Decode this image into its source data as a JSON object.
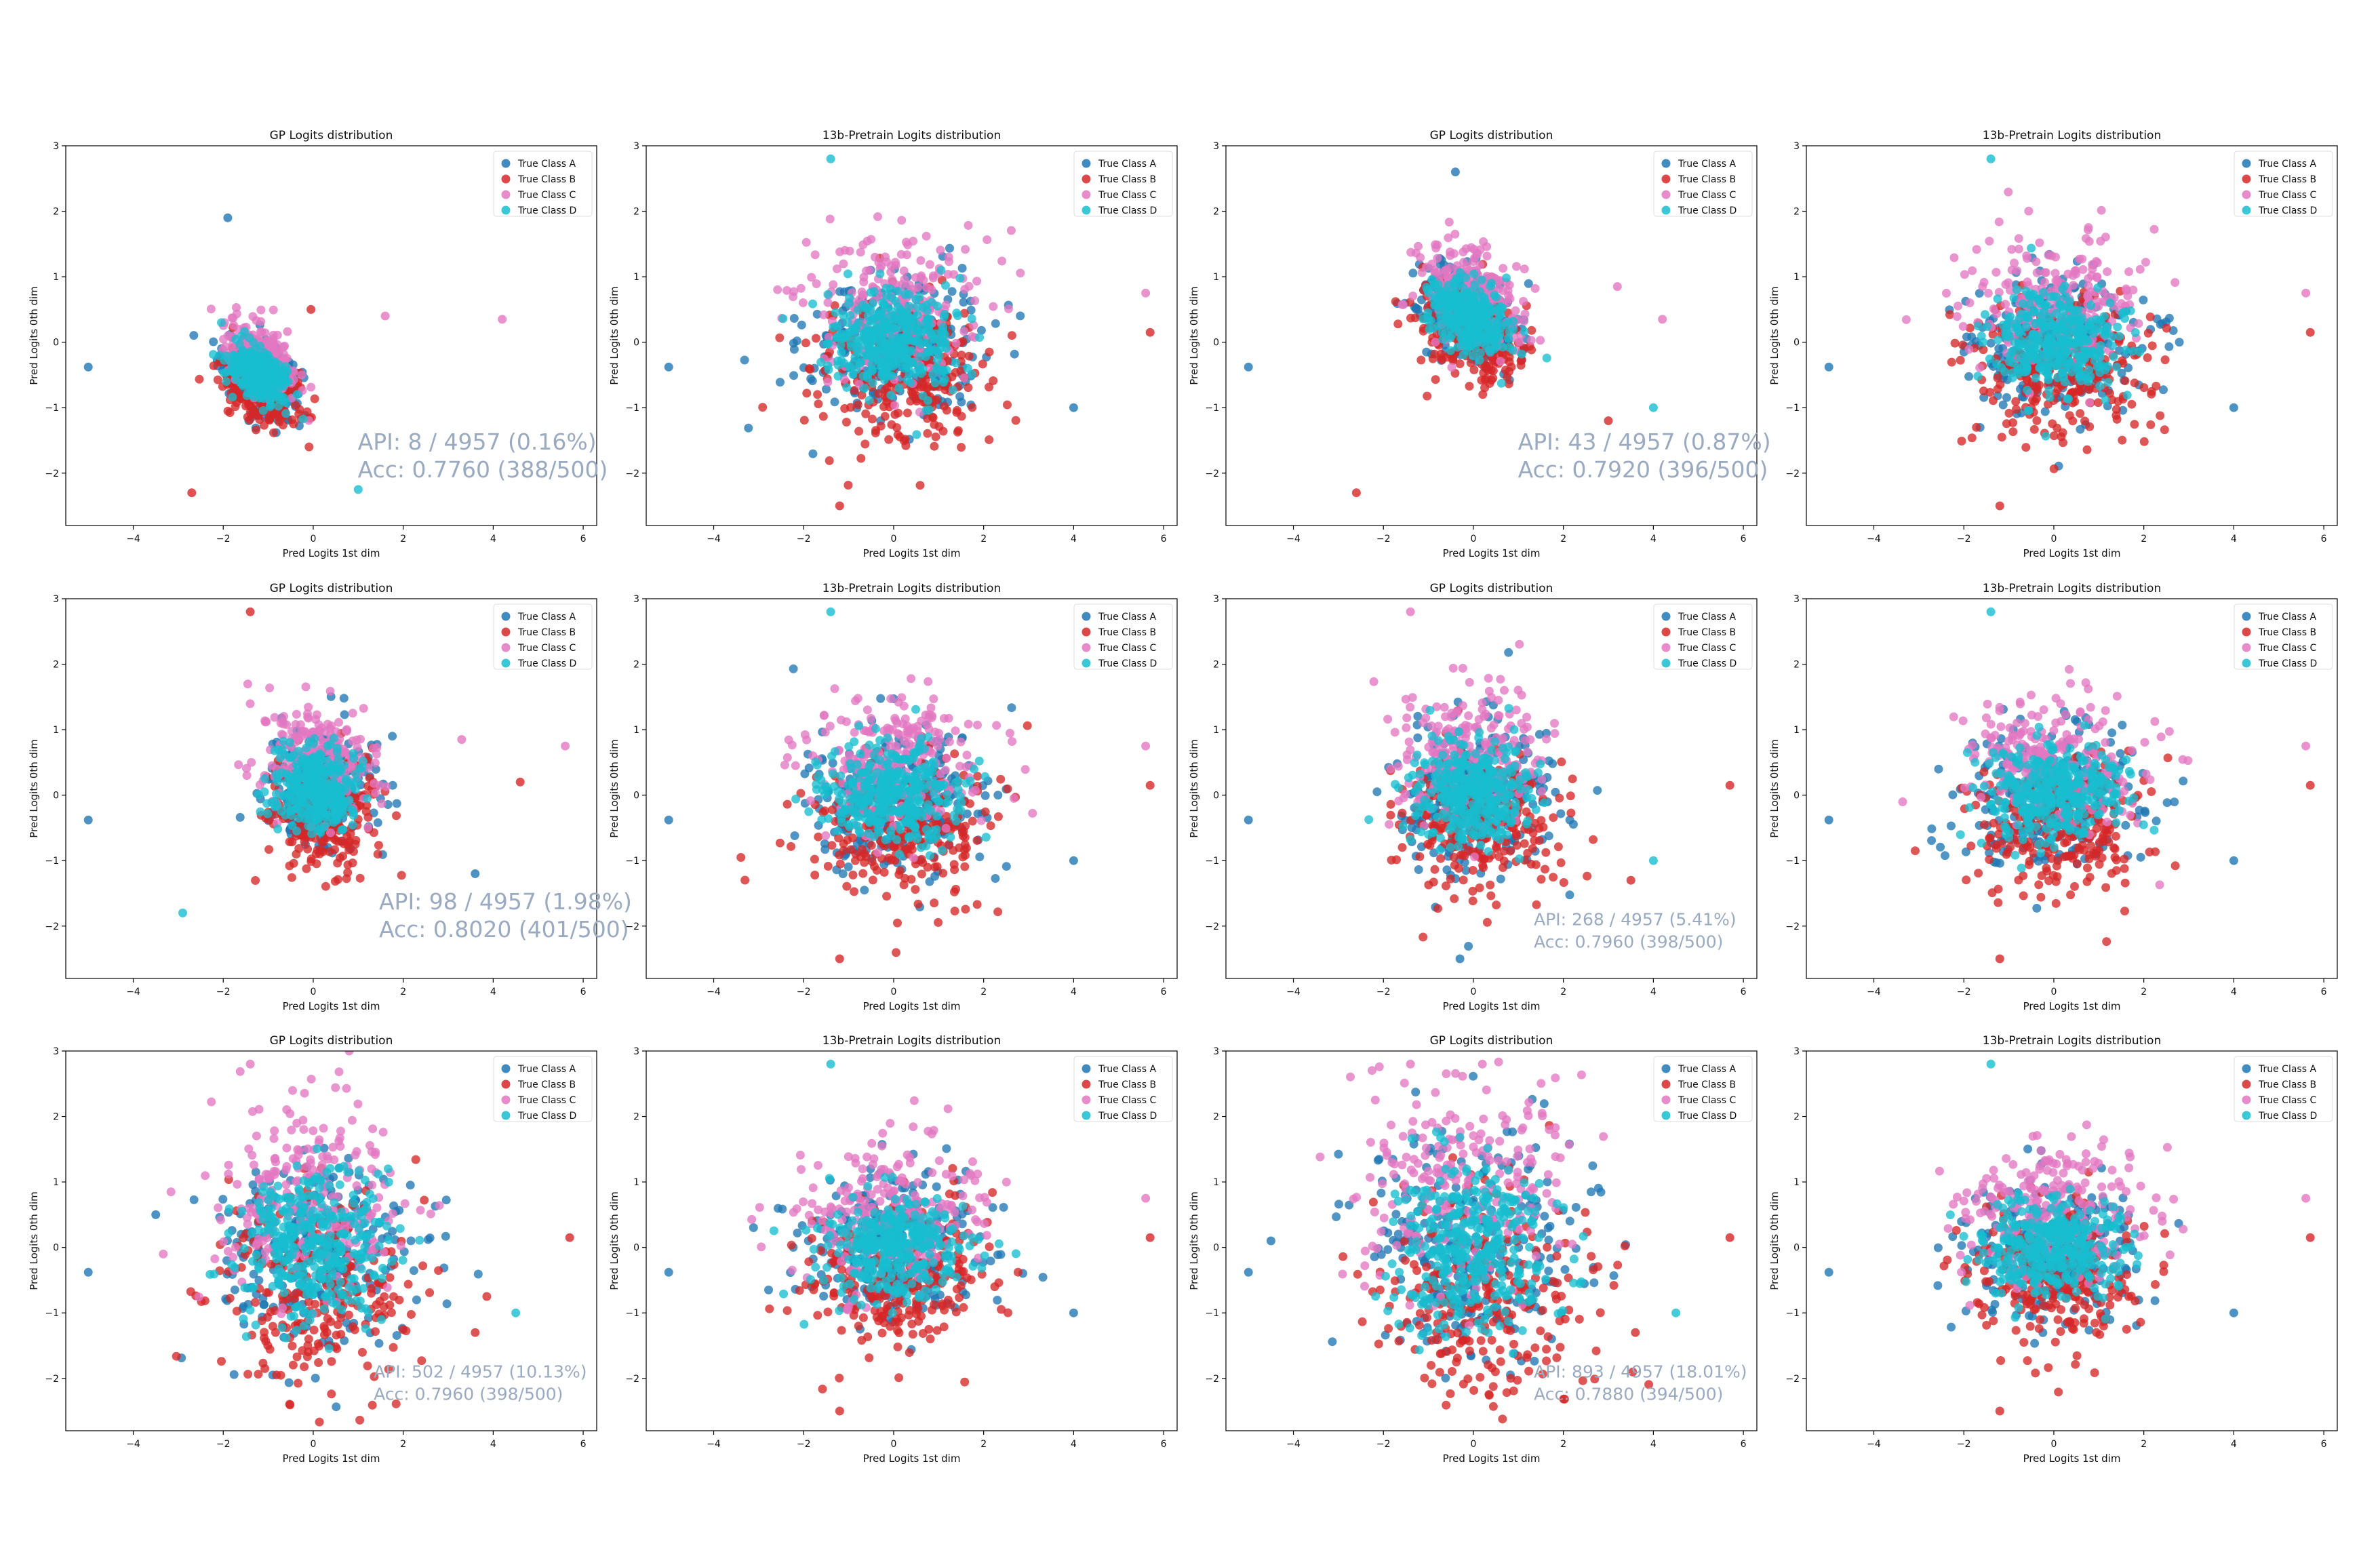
{
  "colors": {
    "A": "#1f77b4",
    "B": "#d62728",
    "C": "#e377c2",
    "D": "#17becf",
    "annotation": "#9aaac0"
  },
  "chart_data": [
    {
      "type": "scatter",
      "title": "GP Logits distribution",
      "xlabel": "Pred Logits 1st dim",
      "ylabel": "Pred Logits 0th dim",
      "xlim": [
        -5.5,
        6.3
      ],
      "ylim": [
        -2.8,
        3.0
      ],
      "xticks": [
        "−4",
        "−2",
        "0",
        "2",
        "4",
        "6"
      ],
      "yticks": [
        "−2",
        "−1",
        "0",
        "1",
        "2",
        "3"
      ],
      "legend": [
        "True Class A",
        "True Class B",
        "True Class C",
        "True Class D"
      ],
      "legend_position": "top-right",
      "grid": false,
      "annotation": [
        "API: 8 / 4957 (0.16%)",
        "Acc: 0.7760 (388/500)"
      ],
      "center": [
        -1.2,
        -0.5
      ],
      "spread": [
        0.45,
        0.25
      ],
      "rotation": -0.35,
      "outliers": [
        [
          -5.0,
          -0.38
        ],
        [
          -2.7,
          -2.3
        ],
        [
          4.2,
          0.35
        ],
        [
          1.0,
          -2.25
        ],
        [
          -1.9,
          1.9
        ],
        [
          -0.05,
          0.5
        ],
        [
          1.6,
          0.4
        ]
      ]
    },
    {
      "type": "scatter",
      "title": "13b-Pretrain Logits distribution",
      "xlabel": "Pred Logits 1st dim",
      "ylabel": "Pred Logits 0th dim",
      "xlim": [
        -5.5,
        6.3
      ],
      "ylim": [
        -2.8,
        3.0
      ],
      "xticks": [
        "−4",
        "−2",
        "0",
        "2",
        "4",
        "6"
      ],
      "yticks": [
        "−2",
        "−1",
        "0",
        "1",
        "2",
        "3"
      ],
      "legend": [
        "True Class A",
        "True Class B",
        "True Class C",
        "True Class D"
      ],
      "legend_position": "top-right",
      "grid": false,
      "annotation": [],
      "center": [
        0,
        0
      ],
      "spread": [
        1.0,
        0.55
      ],
      "rotation": 0,
      "outliers": [
        [
          -5.0,
          -0.38
        ],
        [
          5.7,
          0.15
        ],
        [
          5.6,
          0.75
        ],
        [
          -1.4,
          2.8
        ],
        [
          4.0,
          -1.0
        ],
        [
          -1.2,
          -2.5
        ]
      ]
    },
    {
      "type": "scatter",
      "title": "GP Logits distribution",
      "xlabel": "Pred Logits 1st dim",
      "ylabel": "Pred Logits 0th dim",
      "xlim": [
        -5.5,
        6.3
      ],
      "ylim": [
        -2.8,
        3.0
      ],
      "xticks": [
        "−4",
        "−2",
        "0",
        "2",
        "4",
        "6"
      ],
      "yticks": [
        "−2",
        "−1",
        "0",
        "1",
        "2",
        "3"
      ],
      "legend": [
        "True Class A",
        "True Class B",
        "True Class C",
        "True Class D"
      ],
      "legend_position": "top-right",
      "grid": false,
      "annotation": [
        "API: 43 / 4957 (0.87%)",
        "Acc: 0.7920 (396/500)"
      ],
      "center": [
        -0.1,
        0.4
      ],
      "spread": [
        0.6,
        0.35
      ],
      "rotation": -0.3,
      "outliers": [
        [
          -5.0,
          -0.38
        ],
        [
          -2.6,
          -2.3
        ],
        [
          4.2,
          0.35
        ],
        [
          4.0,
          -1.0
        ],
        [
          -0.4,
          2.6
        ],
        [
          3.0,
          -1.2
        ],
        [
          3.2,
          0.85
        ]
      ]
    },
    {
      "type": "scatter",
      "title": "13b-Pretrain Logits distribution",
      "xlabel": "Pred Logits 1st dim",
      "ylabel": "Pred Logits 0th dim",
      "xlim": [
        -5.5,
        6.3
      ],
      "ylim": [
        -2.8,
        3.0
      ],
      "xticks": [
        "−4",
        "−2",
        "0",
        "2",
        "4",
        "6"
      ],
      "yticks": [
        "−2",
        "−1",
        "0",
        "1",
        "2",
        "3"
      ],
      "legend": [
        "True Class A",
        "True Class B",
        "True Class C",
        "True Class D"
      ],
      "legend_position": "top-right",
      "grid": false,
      "annotation": [],
      "center": [
        0,
        0
      ],
      "spread": [
        1.0,
        0.55
      ],
      "rotation": 0,
      "outliers": [
        [
          -5.0,
          -0.38
        ],
        [
          5.7,
          0.15
        ],
        [
          5.6,
          0.75
        ],
        [
          -1.4,
          2.8
        ],
        [
          4.0,
          -1.0
        ],
        [
          -1.2,
          -2.5
        ]
      ]
    },
    {
      "type": "scatter",
      "title": "GP Logits distribution",
      "xlabel": "Pred Logits 1st dim",
      "ylabel": "Pred Logits 0th dim",
      "xlim": [
        -5.5,
        6.3
      ],
      "ylim": [
        -2.8,
        3.0
      ],
      "xticks": [
        "−4",
        "−2",
        "0",
        "2",
        "4",
        "6"
      ],
      "yticks": [
        "−2",
        "−1",
        "0",
        "1",
        "2",
        "3"
      ],
      "legend": [
        "True Class A",
        "True Class B",
        "True Class C",
        "True Class D"
      ],
      "legend_position": "top-right",
      "grid": false,
      "annotation": [
        "API: 98 / 4957 (1.98%)",
        "Acc: 0.8020 (401/500)"
      ],
      "center": [
        0.1,
        0.1
      ],
      "spread": [
        0.6,
        0.45
      ],
      "rotation": 0,
      "outliers": [
        [
          -5.0,
          -0.38
        ],
        [
          -1.4,
          2.8
        ],
        [
          5.6,
          0.75
        ],
        [
          -2.9,
          -1.8
        ],
        [
          3.6,
          -1.2
        ],
        [
          4.6,
          0.2
        ],
        [
          3.3,
          0.85
        ]
      ]
    },
    {
      "type": "scatter",
      "title": "13b-Pretrain Logits distribution",
      "xlabel": "Pred Logits 1st dim",
      "ylabel": "Pred Logits 0th dim",
      "xlim": [
        -5.5,
        6.3
      ],
      "ylim": [
        -2.8,
        3.0
      ],
      "xticks": [
        "−4",
        "−2",
        "0",
        "2",
        "4",
        "6"
      ],
      "yticks": [
        "−2",
        "−1",
        "0",
        "1",
        "2",
        "3"
      ],
      "legend": [
        "True Class A",
        "True Class B",
        "True Class C",
        "True Class D"
      ],
      "legend_position": "top-right",
      "grid": false,
      "annotation": [],
      "center": [
        0,
        0
      ],
      "spread": [
        1.0,
        0.55
      ],
      "rotation": 0,
      "outliers": [
        [
          -5.0,
          -0.38
        ],
        [
          5.7,
          0.15
        ],
        [
          5.6,
          0.75
        ],
        [
          -1.4,
          2.8
        ],
        [
          4.0,
          -1.0
        ],
        [
          -1.2,
          -2.5
        ]
      ]
    },
    {
      "type": "scatter",
      "title": "GP Logits distribution",
      "xlabel": "Pred Logits 1st dim",
      "ylabel": "Pred Logits 0th dim",
      "xlim": [
        -5.5,
        6.3
      ],
      "ylim": [
        -2.8,
        3.0
      ],
      "xticks": [
        "−4",
        "−2",
        "0",
        "2",
        "4",
        "6"
      ],
      "yticks": [
        "−2",
        "−1",
        "0",
        "1",
        "2",
        "3"
      ],
      "legend": [
        "True Class A",
        "True Class B",
        "True Class C",
        "True Class D"
      ],
      "legend_position": "top-right",
      "grid": false,
      "annotation": [
        "API: 268 / 4957 (5.41%)",
        "Acc: 0.7960 (398/500)"
      ],
      "center": [
        0,
        0.05
      ],
      "spread": [
        0.85,
        0.55
      ],
      "rotation": 0,
      "outliers": [
        [
          -5.0,
          -0.38
        ],
        [
          5.7,
          0.15
        ],
        [
          -1.4,
          2.8
        ],
        [
          4.0,
          -1.0
        ],
        [
          -0.3,
          -2.5
        ],
        [
          3.5,
          -1.3
        ]
      ]
    },
    {
      "type": "scatter",
      "title": "13b-Pretrain Logits distribution",
      "xlabel": "Pred Logits 1st dim",
      "ylabel": "Pred Logits 0th dim",
      "xlim": [
        -5.5,
        6.3
      ],
      "ylim": [
        -2.8,
        3.0
      ],
      "xticks": [
        "−4",
        "−2",
        "0",
        "2",
        "4",
        "6"
      ],
      "yticks": [
        "−2",
        "−1",
        "0",
        "1",
        "2",
        "3"
      ],
      "legend": [
        "True Class A",
        "True Class B",
        "True Class C",
        "True Class D"
      ],
      "legend_position": "top-right",
      "grid": false,
      "annotation": [],
      "center": [
        0,
        0
      ],
      "spread": [
        1.0,
        0.55
      ],
      "rotation": 0,
      "outliers": [
        [
          -5.0,
          -0.38
        ],
        [
          5.7,
          0.15
        ],
        [
          5.6,
          0.75
        ],
        [
          -1.4,
          2.8
        ],
        [
          4.0,
          -1.0
        ],
        [
          -1.2,
          -2.5
        ]
      ]
    },
    {
      "type": "scatter",
      "title": "GP Logits distribution",
      "xlabel": "Pred Logits 1st dim",
      "ylabel": "Pred Logits 0th dim",
      "xlim": [
        -5.5,
        6.3
      ],
      "ylim": [
        -2.8,
        3.0
      ],
      "xticks": [
        "−4",
        "−2",
        "0",
        "2",
        "4",
        "6"
      ],
      "yticks": [
        "−2",
        "−1",
        "0",
        "1",
        "2",
        "3"
      ],
      "legend": [
        "True Class A",
        "True Class B",
        "True Class C",
        "True Class D"
      ],
      "legend_position": "top-right",
      "grid": false,
      "annotation": [
        "API: 502 / 4957 (10.13%)",
        "Acc: 0.7960 (398/500)"
      ],
      "center": [
        0,
        0
      ],
      "spread": [
        1.05,
        0.8
      ],
      "rotation": 0,
      "outliers": [
        [
          -5.0,
          -0.38
        ],
        [
          5.7,
          0.15
        ],
        [
          -1.4,
          2.8
        ],
        [
          4.5,
          -1.0
        ],
        [
          -3.5,
          0.5
        ],
        [
          3.6,
          -1.3
        ],
        [
          0.8,
          3.0
        ]
      ]
    },
    {
      "type": "scatter",
      "title": "13b-Pretrain Logits distribution",
      "xlabel": "Pred Logits 1st dim",
      "ylabel": "Pred Logits 0th dim",
      "xlim": [
        -5.5,
        6.3
      ],
      "ylim": [
        -2.8,
        3.0
      ],
      "xticks": [
        "−4",
        "−2",
        "0",
        "2",
        "4",
        "6"
      ],
      "yticks": [
        "−2",
        "−1",
        "0",
        "1",
        "2",
        "3"
      ],
      "legend": [
        "True Class A",
        "True Class B",
        "True Class C",
        "True Class D"
      ],
      "legend_position": "top-right",
      "grid": false,
      "annotation": [],
      "center": [
        0,
        0
      ],
      "spread": [
        1.0,
        0.55
      ],
      "rotation": 0,
      "outliers": [
        [
          -5.0,
          -0.38
        ],
        [
          5.7,
          0.15
        ],
        [
          5.6,
          0.75
        ],
        [
          -1.4,
          2.8
        ],
        [
          4.0,
          -1.0
        ],
        [
          -1.2,
          -2.5
        ]
      ]
    },
    {
      "type": "scatter",
      "title": "GP Logits distribution",
      "xlabel": "Pred Logits 1st dim",
      "ylabel": "Pred Logits 0th dim",
      "xlim": [
        -5.5,
        6.3
      ],
      "ylim": [
        -2.8,
        3.0
      ],
      "xticks": [
        "−4",
        "−2",
        "0",
        "2",
        "4",
        "6"
      ],
      "yticks": [
        "−2",
        "−1",
        "0",
        "1",
        "2",
        "3"
      ],
      "legend": [
        "True Class A",
        "True Class B",
        "True Class C",
        "True Class D"
      ],
      "legend_position": "top-right",
      "grid": false,
      "annotation": [
        "API: 893 / 4957 (18.01%)",
        "Acc: 0.7880 (394/500)"
      ],
      "center": [
        0,
        0
      ],
      "spread": [
        1.2,
        0.9
      ],
      "rotation": 0,
      "outliers": [
        [
          -5.0,
          -0.38
        ],
        [
          5.7,
          0.15
        ],
        [
          -1.4,
          2.8
        ],
        [
          4.5,
          -1.0
        ],
        [
          -4.5,
          0.1
        ],
        [
          3.6,
          -1.3
        ],
        [
          0.2,
          2.8
        ]
      ]
    },
    {
      "type": "scatter",
      "title": "13b-Pretrain Logits distribution",
      "xlabel": "Pred Logits 1st dim",
      "ylabel": "Pred Logits 0th dim",
      "xlim": [
        -5.5,
        6.3
      ],
      "ylim": [
        -2.8,
        3.0
      ],
      "xticks": [
        "−4",
        "−2",
        "0",
        "2",
        "4",
        "6"
      ],
      "yticks": [
        "−2",
        "−1",
        "0",
        "1",
        "2",
        "3"
      ],
      "legend": [
        "True Class A",
        "True Class B",
        "True Class C",
        "True Class D"
      ],
      "legend_position": "top-right",
      "grid": false,
      "annotation": [],
      "center": [
        0,
        0
      ],
      "spread": [
        1.0,
        0.55
      ],
      "rotation": 0,
      "outliers": [
        [
          -5.0,
          -0.38
        ],
        [
          5.7,
          0.15
        ],
        [
          5.6,
          0.75
        ],
        [
          -1.4,
          2.8
        ],
        [
          4.0,
          -1.0
        ],
        [
          -1.2,
          -2.5
        ]
      ]
    }
  ]
}
